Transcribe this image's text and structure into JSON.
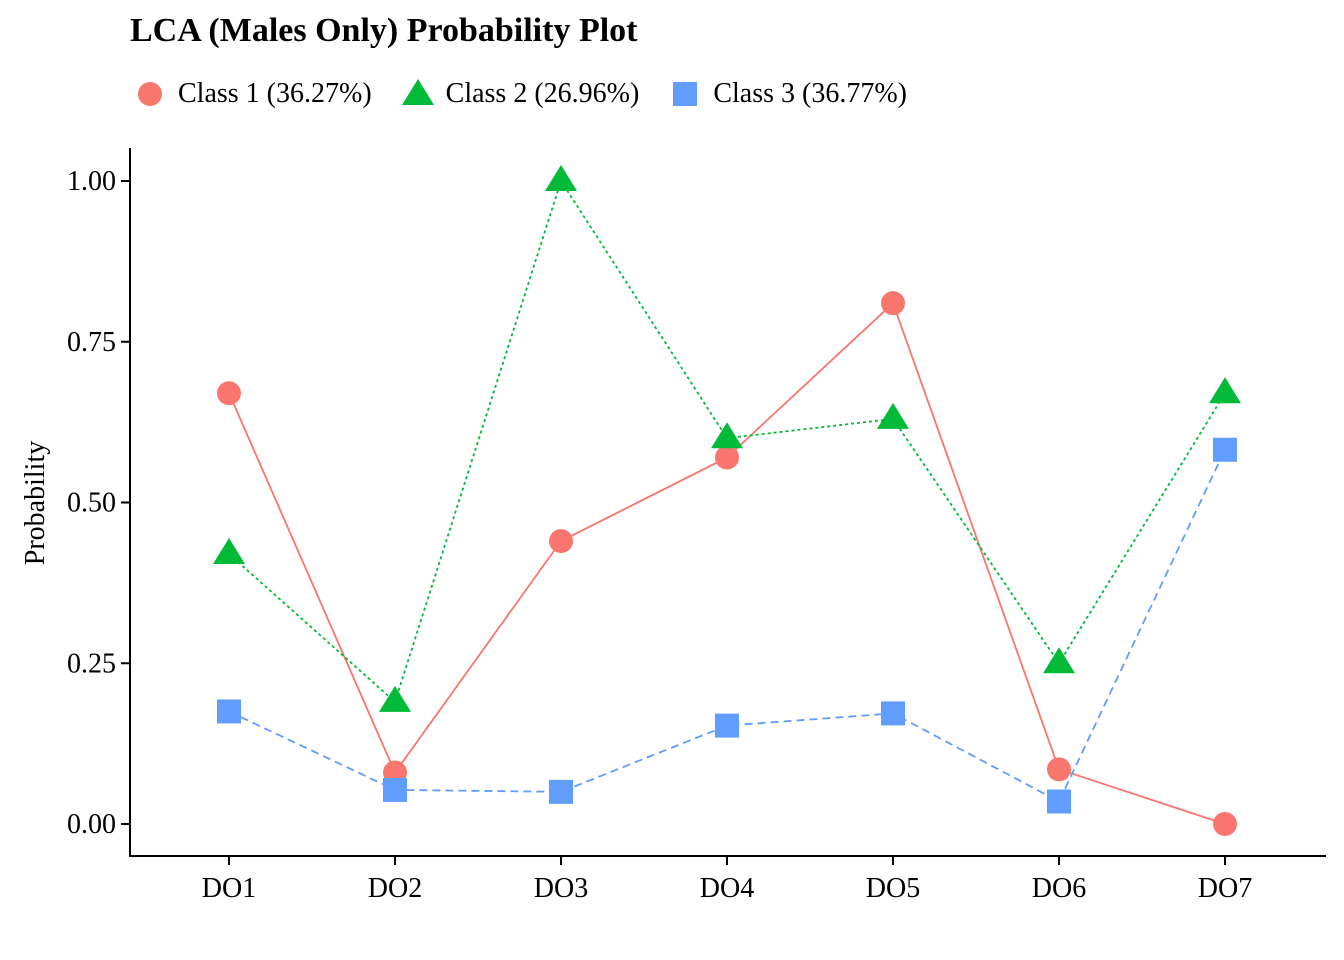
{
  "chart_data": {
    "type": "line",
    "title": "LCA (Males Only) Probability Plot",
    "xlabel": "",
    "ylabel": "Probability",
    "categories": [
      "DO1",
      "DO2",
      "DO3",
      "DO4",
      "DO5",
      "DO6",
      "DO7"
    ],
    "ylim": [
      -0.05,
      1.05
    ],
    "yticks": [
      0,
      0.25,
      0.5,
      0.75,
      1
    ],
    "ytick_labels": [
      "0.00",
      "0.25",
      "0.50",
      "0.75",
      "1.00"
    ],
    "grid": false,
    "legend_position": "top-left",
    "series": [
      {
        "name": "Class 1 (36.27%)",
        "color": "#F8766D",
        "marker": "circle",
        "line_style": "solid",
        "values": [
          0.67,
          0.08,
          0.44,
          0.57,
          0.81,
          0.085,
          0.0
        ]
      },
      {
        "name": "Class 2 (26.96%)",
        "color": "#00BA38",
        "marker": "triangle",
        "line_style": "dotted",
        "values": [
          0.42,
          0.19,
          1.0,
          0.6,
          0.63,
          0.25,
          0.67
        ]
      },
      {
        "name": "Class 3 (36.77%)",
        "color": "#619CFF",
        "marker": "square",
        "line_style": "dashed",
        "values": [
          0.175,
          0.053,
          0.05,
          0.153,
          0.172,
          0.035,
          0.582
        ]
      }
    ]
  }
}
